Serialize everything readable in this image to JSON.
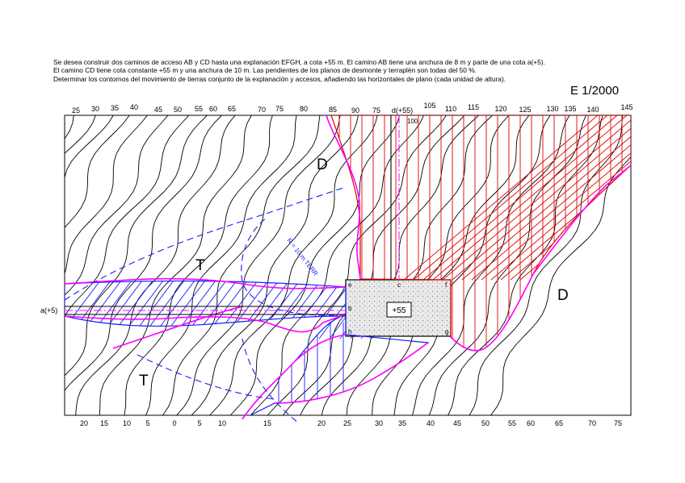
{
  "statement": [
    "Se desea construir dos caminos de acceso AB y CD hasta una explanación EFGH, a cota +55 m. El camino AB tiene una anchura de 8 m y parte de una cota a(+5).",
    "El camino CD tiene cota constante +55 m y una anchura de 10 m. Las pendientes de los planos de desmonte y terraplén son todas del 50 %.",
    "Determinar los contornos del movimiento de tierras conjunto de la explanación y accesos, añadiendo las horizontales de plano (cada unidad de altura)."
  ],
  "scale": "E 1/2000",
  "top_labels": [
    "25",
    "30",
    "35",
    "40",
    "45",
    "50",
    "55",
    "60",
    "65",
    "70",
    "75",
    "80",
    "85",
    "90",
    "75",
    "d(+55)",
    "105",
    "110",
    "115",
    "120",
    "125",
    "130",
    "135",
    "140",
    "145"
  ],
  "bottom_labels": [
    "20",
    "15",
    "10",
    "5",
    "0",
    "5",
    "10",
    "15",
    "20",
    "25",
    "30",
    "35",
    "40",
    "45",
    "50",
    "55",
    "60",
    "65",
    "70",
    "75"
  ],
  "zone_labels": {
    "d_upper": "D",
    "d_right": "D",
    "t_upper": "T",
    "t_lower": "T"
  },
  "point_labels": {
    "a": "a(+5)",
    "b": "b",
    "c": "c",
    "e": "e",
    "f": "f",
    "g": "g",
    "h": "h",
    "elev_100": "100",
    "platform": "+55"
  },
  "curve_annotation": "R = 10 m TERR",
  "colors": {
    "contour": "#000000",
    "cut": "#e00000",
    "fill": "#1a1aff",
    "boundary": "#ff00ff",
    "platform": "#c8c8c8"
  }
}
